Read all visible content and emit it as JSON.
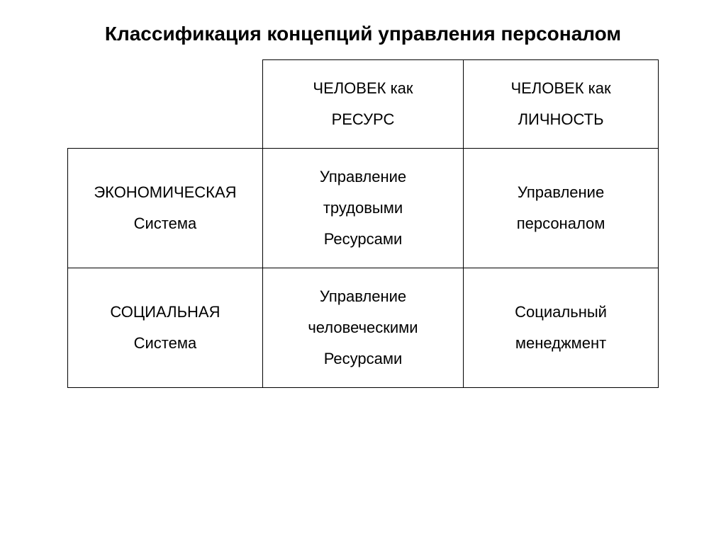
{
  "title": "Классификация концепций управления персоналом",
  "table": {
    "columns": [
      "",
      "ЧЕЛОВЕК как\nРЕСУРС",
      "ЧЕЛОВЕК как\nЛИЧНОСТЬ"
    ],
    "rows": [
      [
        "ЭКОНОМИЧЕСКАЯ\nСистема",
        "Управление\nтрудовыми\nРесурсами",
        "Управление\nперсоналом"
      ],
      [
        "СОЦИАЛЬНАЯ\nСистема",
        "Управление\nчеловеческими\nРесурсами",
        "Социальный\nменеджмент"
      ]
    ],
    "border_color": "#000000",
    "background_color": "#ffffff",
    "title_fontsize": 28,
    "cell_fontsize": 22,
    "font_family": "Arial"
  }
}
